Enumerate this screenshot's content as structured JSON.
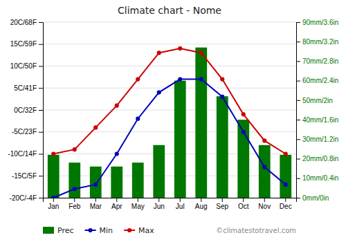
{
  "chart_data": {
    "type": "bar",
    "title": "Climate chart - Nome",
    "categories": [
      "Jan",
      "Feb",
      "Mar",
      "Apr",
      "May",
      "Jun",
      "Jul",
      "Aug",
      "Sep",
      "Oct",
      "Nov",
      "Dec"
    ],
    "series": [
      {
        "name": "Prec",
        "type": "bar",
        "axis": "y2",
        "color": "#007700",
        "values": [
          22,
          18,
          16,
          16,
          18,
          27,
          60,
          77,
          52,
          40,
          27,
          22
        ]
      },
      {
        "name": "Min",
        "type": "line",
        "color": "#0000bb",
        "marker": "circle",
        "values": [
          -20,
          -18,
          -17,
          -10,
          -2,
          4,
          7,
          7,
          3,
          -5,
          -13,
          -17
        ]
      },
      {
        "name": "Max",
        "type": "line",
        "color": "#cc0000",
        "marker": "circle",
        "values": [
          -10,
          -9,
          -4,
          1,
          7,
          13,
          14,
          13,
          7,
          -1,
          -7,
          -10
        ]
      }
    ],
    "ylim": [
      -20,
      20
    ],
    "yticks": [
      {
        "value": -20,
        "label": "-20C/-4F"
      },
      {
        "value": -15,
        "label": "-15C/5F"
      },
      {
        "value": -10,
        "label": "-10C/14F"
      },
      {
        "value": -5,
        "label": "-5C/23F"
      },
      {
        "value": 0,
        "label": "0C/32F"
      },
      {
        "value": 5,
        "label": "5C/41F"
      },
      {
        "value": 10,
        "label": "10C/50F"
      },
      {
        "value": 15,
        "label": "15C/59F"
      },
      {
        "value": 20,
        "label": "20C/68F"
      }
    ],
    "y2lim": [
      0,
      90
    ],
    "y2ticks": [
      {
        "value": 0,
        "label": "0mm/0in"
      },
      {
        "value": 10,
        "label": "10mm/0.4in"
      },
      {
        "value": 20,
        "label": "20mm/0.8in"
      },
      {
        "value": 30,
        "label": "30mm/1.2in"
      },
      {
        "value": 40,
        "label": "40mm/1.6in"
      },
      {
        "value": 50,
        "label": "50mm/2in"
      },
      {
        "value": 60,
        "label": "60mm/2.4in"
      },
      {
        "value": 70,
        "label": "70mm/2.8in"
      },
      {
        "value": 80,
        "label": "80mm/3.2in"
      },
      {
        "value": 90,
        "label": "90mm/3.6in"
      }
    ],
    "grid": true,
    "legend": "bottom",
    "annotations": [
      "©climatestotravel.com"
    ]
  }
}
